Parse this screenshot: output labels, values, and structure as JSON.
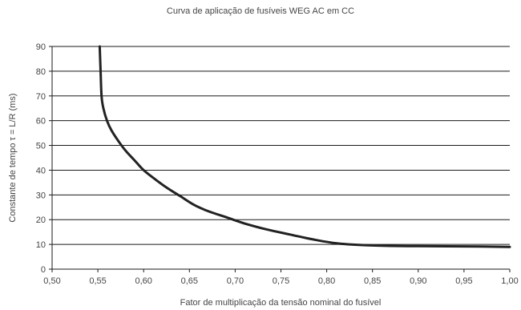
{
  "chart_data": {
    "type": "line",
    "title": "Curva de aplicação de fusíveis WEG AC em CC",
    "xlabel": "Fator de multiplicação da tensão nominal do fusível",
    "ylabel": "Constante de tempo τ = L/R (ms)",
    "xlim": [
      0.5,
      1.0
    ],
    "ylim": [
      0,
      90
    ],
    "x_ticks": [
      "0,50",
      "0,55",
      "0,60",
      "0,65",
      "0,70",
      "0,75",
      "0,80",
      "0,85",
      "0,90",
      "0,95",
      "1,00"
    ],
    "y_ticks": [
      "0",
      "10",
      "20",
      "30",
      "40",
      "50",
      "60",
      "70",
      "80",
      "90"
    ],
    "grid": "horizontal",
    "legend": "none",
    "series": [
      {
        "color": "#222222",
        "x": [
          0.552,
          0.553,
          0.554,
          0.556,
          0.56,
          0.565,
          0.572,
          0.58,
          0.59,
          0.6,
          0.612,
          0.625,
          0.64,
          0.655,
          0.67,
          0.69,
          0.71,
          0.735,
          0.76,
          0.785,
          0.81,
          0.84,
          0.87,
          0.9,
          0.95,
          1.0
        ],
        "y": [
          90,
          80,
          70,
          65,
          60,
          56,
          52,
          48,
          44,
          40,
          36.5,
          33,
          29.5,
          26,
          23.5,
          21,
          18.5,
          16,
          14,
          12,
          10.5,
          9.7,
          9.4,
          9.3,
          9.2,
          9.0
        ]
      }
    ]
  }
}
